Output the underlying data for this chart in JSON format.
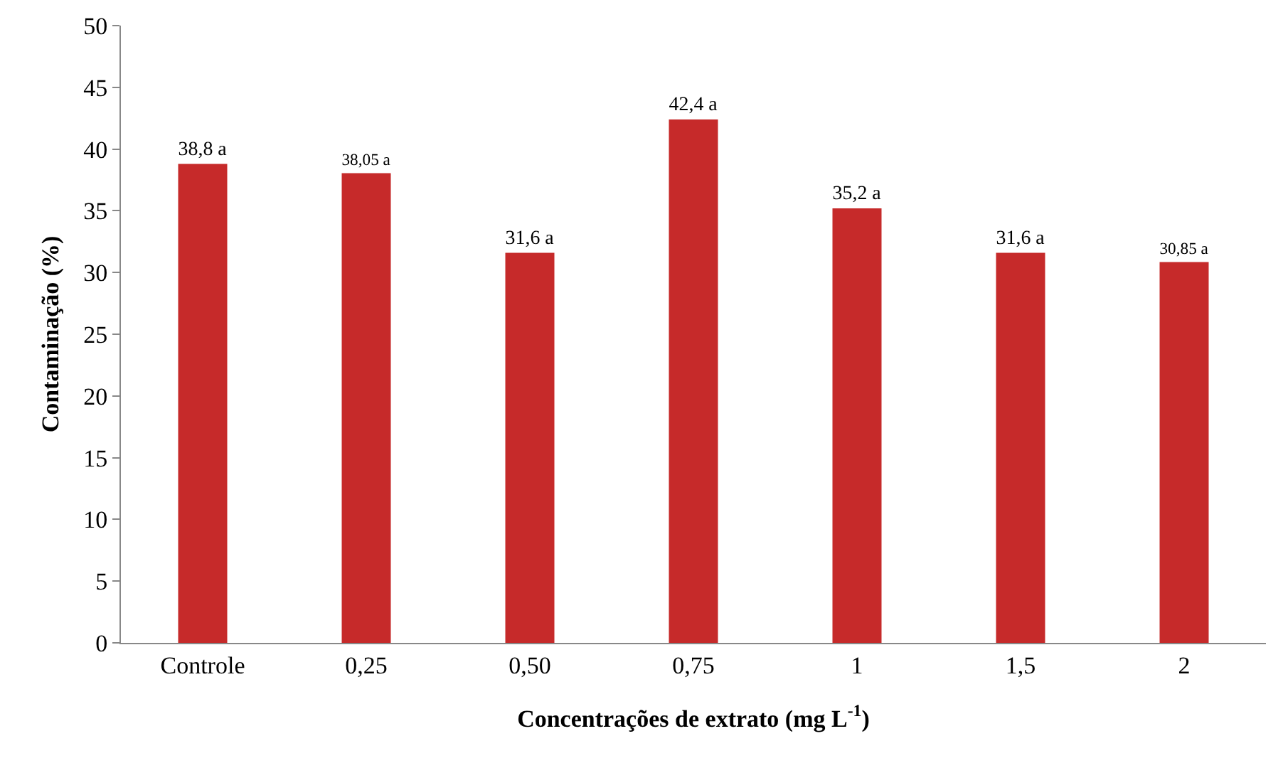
{
  "chart_data": {
    "type": "bar",
    "xlabel": "Concentrações de extrato (mg L$^{-1}$)",
    "ylabel": "Contaminação (%)",
    "categories": [
      "Controle",
      "0,25",
      "0,50",
      "0,75",
      "1",
      "1,5",
      "2"
    ],
    "values": [
      38.8,
      38.05,
      31.6,
      42.4,
      35.2,
      31.6,
      30.85
    ],
    "value_labels": [
      "38,8 a",
      "38,05 a",
      "31,6 a",
      "42,4 a",
      "35,2 a",
      "31,6 a",
      "30,85 a"
    ],
    "color": "#c62a2a",
    "ylim": [
      0,
      50
    ],
    "yticks": [
      0,
      5,
      10,
      15,
      20,
      25,
      30,
      35,
      40,
      45,
      50
    ],
    "grid": false,
    "legend": false
  }
}
